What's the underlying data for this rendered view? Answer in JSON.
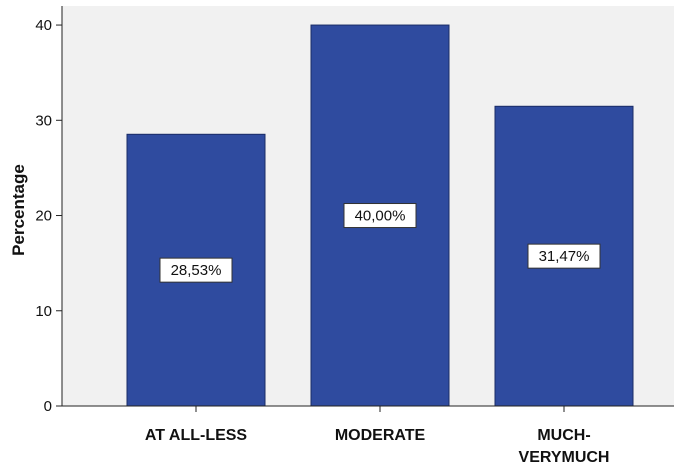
{
  "chart_data": {
    "type": "bar",
    "categories": [
      "AT ALL-LESS",
      "MODERATE",
      "MUCH-\nVERYMUCH"
    ],
    "values": [
      28.53,
      40.0,
      31.47
    ],
    "data_labels": [
      "28,53%",
      "40,00%",
      "31,47%"
    ],
    "title": "",
    "xlabel": "",
    "ylabel": "Percentage",
    "ylim": [
      0,
      42
    ],
    "yticks": [
      0,
      10,
      20,
      30,
      40
    ],
    "grid": false,
    "colors": {
      "bar": "#2f4b9f",
      "bar_edge": "#1a2c66",
      "plot_background": "#f1f1f1"
    }
  }
}
